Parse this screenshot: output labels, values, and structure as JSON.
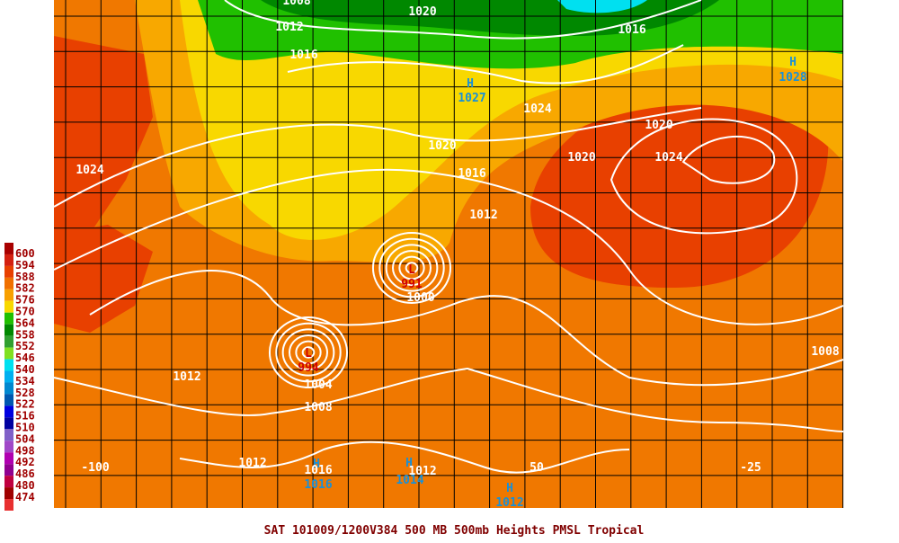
{
  "legend": [
    {
      "label": "600",
      "color": "#a80000"
    },
    {
      "label": "594",
      "color": "#d42010"
    },
    {
      "label": "588",
      "color": "#e84000"
    },
    {
      "label": "582",
      "color": "#f07000"
    },
    {
      "label": "576",
      "color": "#f8a000"
    },
    {
      "label": "570",
      "color": "#f8d800"
    },
    {
      "label": "564",
      "color": "#20c000"
    },
    {
      "label": "558",
      "color": "#008800"
    },
    {
      "label": "552",
      "color": "#30a030"
    },
    {
      "label": "546",
      "color": "#80e020"
    },
    {
      "label": "540",
      "color": "#00e0f0"
    },
    {
      "label": "534",
      "color": "#00b0f0"
    },
    {
      "label": "528",
      "color": "#0088d0"
    },
    {
      "label": "522",
      "color": "#0058b0"
    },
    {
      "label": "516",
      "color": "#0000e0"
    },
    {
      "label": "510",
      "color": "#0000a0"
    },
    {
      "label": "504",
      "color": "#8060c8"
    },
    {
      "label": "498",
      "color": "#a048c8"
    },
    {
      "label": "492",
      "color": "#b000b0"
    },
    {
      "label": "486",
      "color": "#900090"
    },
    {
      "label": "480",
      "color": "#c00040"
    },
    {
      "label": "474",
      "color": "#a00000"
    }
  ],
  "map_labels": [
    "1008",
    "1020",
    "1012",
    "1016",
    "1016",
    "H",
    "1027",
    "H",
    "1028",
    "1024",
    "1020",
    "1020",
    "1020",
    "1024",
    "1024",
    "1016",
    "1012",
    "L",
    "991",
    "1000",
    "L",
    "994",
    "1004",
    "1008",
    "1012",
    "1008",
    "1012",
    "H",
    "1016",
    "1016",
    "H",
    "1012",
    "1014",
    "H",
    "1012"
  ],
  "longitudes": [
    "-100",
    "50",
    "-25"
  ],
  "footer": "SAT 101009/1200V384  500 MB 500mb Heights PMSL Tropical"
}
